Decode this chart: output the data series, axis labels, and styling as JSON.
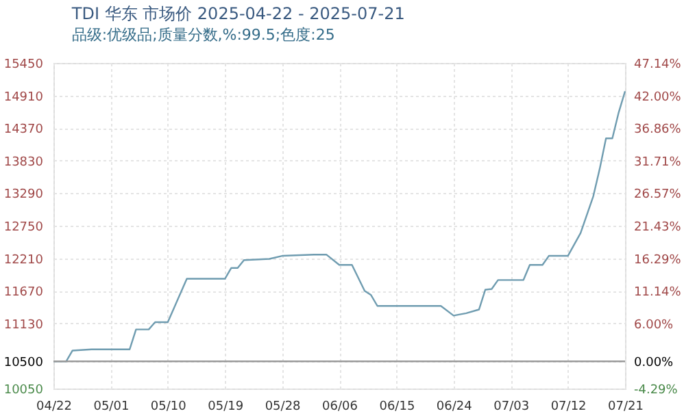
{
  "chart_data": {
    "type": "line",
    "title": "TDI 华东 市场价 2025-04-22 - 2025-07-21",
    "subtitle": "品级:优级品;质量分数,%:99.5;色度:25",
    "x": [
      "2025-04-22",
      "2025-04-24",
      "2025-04-25",
      "2025-04-28",
      "2025-05-04",
      "2025-05-05",
      "2025-05-07",
      "2025-05-08",
      "2025-05-10",
      "2025-05-13",
      "2025-05-19",
      "2025-05-20",
      "2025-05-21",
      "2025-05-22",
      "2025-05-26",
      "2025-05-28",
      "2025-06-02",
      "2025-06-04",
      "2025-06-06",
      "2025-06-08",
      "2025-06-10",
      "2025-06-11",
      "2025-06-12",
      "2025-06-22",
      "2025-06-24",
      "2025-06-26",
      "2025-06-28",
      "2025-06-29",
      "2025-06-30",
      "2025-07-01",
      "2025-07-05",
      "2025-07-06",
      "2025-07-08",
      "2025-07-09",
      "2025-07-12",
      "2025-07-14",
      "2025-07-16",
      "2025-07-17",
      "2025-07-18",
      "2025-07-19",
      "2025-07-20",
      "2025-07-21"
    ],
    "series": [
      {
        "color": "#6f9cb0",
        "values": [
          10500,
          10500,
          10680,
          10700,
          10700,
          11030,
          11030,
          11150,
          11150,
          11870,
          11870,
          12050,
          12050,
          12180,
          12200,
          12250,
          12270,
          12270,
          12100,
          12100,
          11670,
          11600,
          11420,
          11420,
          11260,
          11300,
          11360,
          11690,
          11700,
          11850,
          11850,
          12100,
          12100,
          12250,
          12250,
          12630,
          13240,
          13690,
          14200,
          14200,
          14630,
          14980
        ]
      }
    ],
    "xlim": [
      "2025-04-22",
      "2025-07-21"
    ],
    "xticks": [
      {
        "value": "2025-04-22",
        "label": "04/22"
      },
      {
        "value": "2025-05-01",
        "label": "05/01"
      },
      {
        "value": "2025-05-10",
        "label": "05/10"
      },
      {
        "value": "2025-05-19",
        "label": "05/19"
      },
      {
        "value": "2025-05-28",
        "label": "05/28"
      },
      {
        "value": "2025-06-06",
        "label": "06/06"
      },
      {
        "value": "2025-06-15",
        "label": "06/15"
      },
      {
        "value": "2025-06-24",
        "label": "06/24"
      },
      {
        "value": "2025-07-03",
        "label": "07/03"
      },
      {
        "value": "2025-07-12",
        "label": "07/12"
      },
      {
        "value": "2025-07-21",
        "label": "07/21"
      }
    ],
    "ylim": [
      10050,
      15450
    ],
    "yticks": [
      10050,
      10500,
      11130,
      11670,
      12210,
      12750,
      13290,
      13830,
      14370,
      14910,
      15450
    ],
    "y2lim": [
      -4.29,
      47.14
    ],
    "y2ticks": [
      {
        "value": -4.29,
        "label": "-4.29%"
      },
      {
        "value": 0,
        "label": "0.00%"
      },
      {
        "value": 6.0,
        "label": "6.00%"
      },
      {
        "value": 11.14,
        "label": "11.14%"
      },
      {
        "value": 16.29,
        "label": "16.29%"
      },
      {
        "value": 21.43,
        "label": "21.43%"
      },
      {
        "value": 26.57,
        "label": "26.57%"
      },
      {
        "value": 31.71,
        "label": "31.71%"
      },
      {
        "value": 36.86,
        "label": "36.86%"
      },
      {
        "value": 42.0,
        "label": "42.00%"
      },
      {
        "value": 47.14,
        "label": "47.14%"
      }
    ],
    "ref_lines": [
      {
        "axis": "y2",
        "value": 0,
        "color": "#999999"
      }
    ],
    "grid": true,
    "marker": "none",
    "line_style": "solid"
  }
}
